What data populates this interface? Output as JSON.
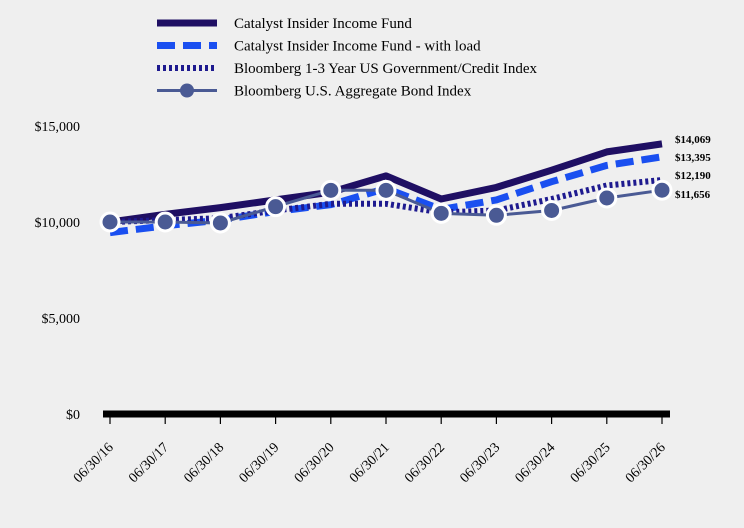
{
  "chart_data": {
    "type": "line",
    "x": [
      "06/30/16",
      "06/30/17",
      "06/30/18",
      "06/30/19",
      "06/30/20",
      "06/30/21",
      "06/30/22",
      "06/30/23",
      "06/30/24",
      "06/30/25",
      "06/30/26"
    ],
    "ylim": [
      0,
      15000
    ],
    "yticks": [
      0,
      5000,
      10000,
      15000
    ],
    "ytick_labels": [
      "$0",
      "$5,000",
      "$10,000",
      "$15,000"
    ],
    "legend_position": "top",
    "grid": false,
    "series": [
      {
        "name": "Catalyst Insider Income Fund",
        "style": "solid",
        "color": "#1f0f63",
        "values": [
          10000,
          10400,
          10750,
          11150,
          11550,
          12400,
          11200,
          11800,
          12700,
          13650,
          14069
        ],
        "end_label": "$14,069"
      },
      {
        "name": "Catalyst Insider Income Fund - with load",
        "style": "dashed",
        "color": "#1a4ff0",
        "values": [
          9450,
          9800,
          10100,
          10550,
          10900,
          11750,
          10650,
          11150,
          12100,
          12950,
          13395
        ],
        "end_label": "$13,395"
      },
      {
        "name": "Bloomberg 1-3 Year US Government/Credit Index",
        "style": "dotted",
        "color": "#1e1a8f",
        "values": [
          10000,
          10100,
          10200,
          10600,
          10950,
          10950,
          10500,
          10600,
          11200,
          11900,
          12190
        ],
        "end_label": "$12,190"
      },
      {
        "name": "Bloomberg U.S. Aggregate Bond Index",
        "style": "marker",
        "color": "#4a5a94",
        "values": [
          10000,
          10000,
          9950,
          10800,
          11650,
          11650,
          10450,
          10350,
          10600,
          11250,
          11656
        ],
        "end_label": "$11,656"
      }
    ]
  }
}
